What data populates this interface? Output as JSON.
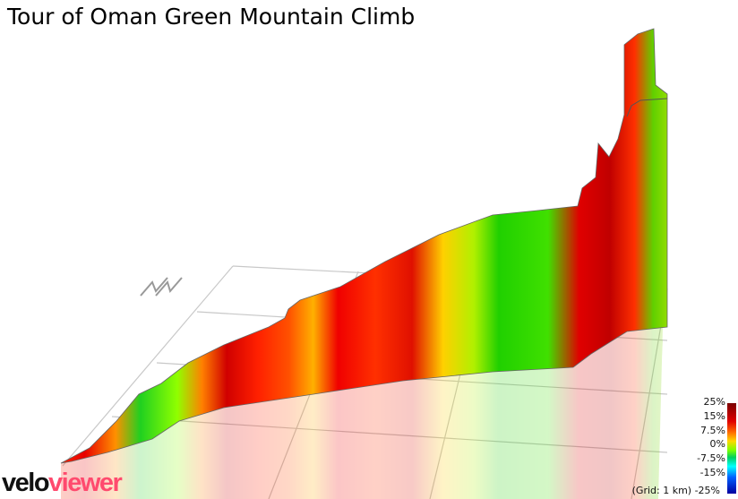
{
  "title": "Tour of Oman Green Mountain Climb",
  "legend": {
    "labels": [
      "25%",
      "15%",
      "7.5%",
      "0%",
      "-7.5%",
      "-15%"
    ],
    "bottom_label": "-25%",
    "grid_note": "(Grid: 1 km)",
    "colors": {
      "max": "#7a0000",
      "high": "#e00000",
      "mid": "#ffd800",
      "zero": "#7cff00",
      "neg": "#00ffff",
      "min": "#0000a0"
    }
  },
  "logo": {
    "part1": "velo",
    "part2": "viewer",
    "brand_color": "#ff4a6e"
  },
  "icons": {
    "north_arrow": "north-arrow-icon"
  }
}
